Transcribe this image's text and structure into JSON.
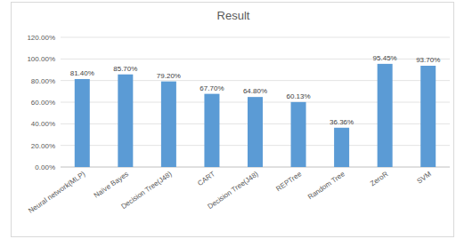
{
  "chart_data": {
    "type": "bar",
    "title": "Result",
    "categories": [
      "Neural network(MLP)",
      "Naïve Bayes",
      "Decision Tree(J48)",
      "CART",
      "Decision Tree(J48)",
      "REPTree",
      "Random Tree",
      "ZeroR",
      "SVM"
    ],
    "values": [
      81.4,
      85.7,
      79.2,
      67.7,
      64.8,
      60.13,
      36.36,
      95.45,
      93.7
    ],
    "value_labels": [
      "81.40%",
      "85.70%",
      "79.20%",
      "67.70%",
      "64.80%",
      "60.13%",
      "36.36%",
      "95.45%",
      "93.70%"
    ],
    "color": "#5b9bd5",
    "ylim": [
      0,
      120
    ],
    "yticks": [
      {
        "value": 0,
        "label": "0.00%"
      },
      {
        "value": 20,
        "label": "20.00%"
      },
      {
        "value": 40,
        "label": "40.00%"
      },
      {
        "value": 60,
        "label": "60.00%"
      },
      {
        "value": 80,
        "label": "80.00%"
      },
      {
        "value": 100,
        "label": "100.00%"
      },
      {
        "value": 120,
        "label": "120.00%"
      }
    ],
    "grid": true,
    "data_labels": true
  }
}
